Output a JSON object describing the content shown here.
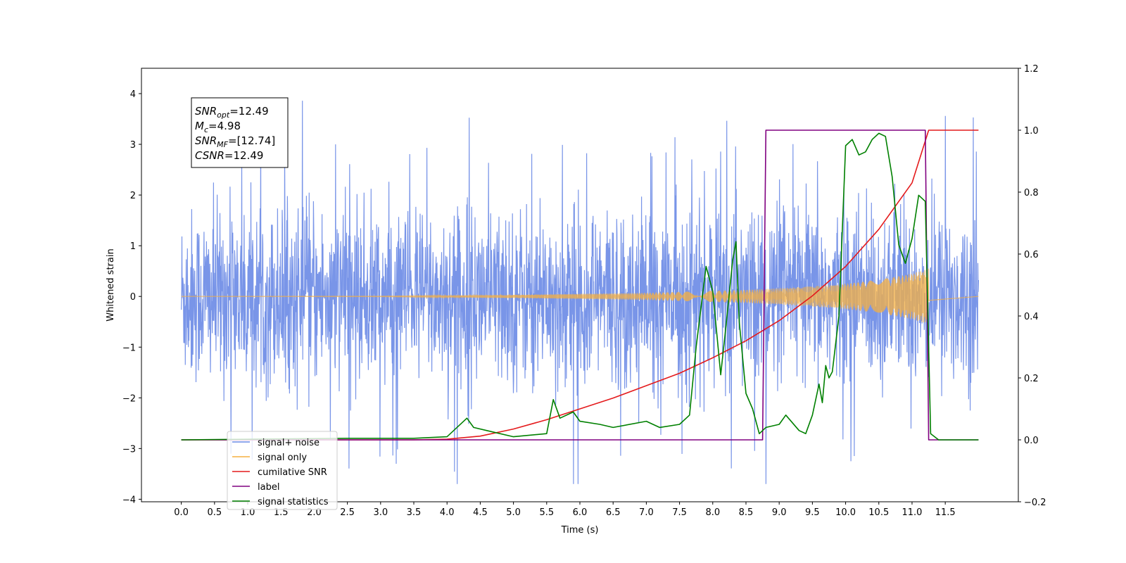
{
  "chart_data": {
    "type": "line",
    "title": "",
    "xlabel": "Time (s)",
    "ylabel": "Whitened strain",
    "xlim": [
      -0.6,
      12.6
    ],
    "ylim": [
      -4.05,
      4.5
    ],
    "y2lim": [
      -0.2,
      1.2
    ],
    "xticks": [
      "0.0",
      "0.5",
      "1.0",
      "1.5",
      "2.0",
      "2.5",
      "3.0",
      "3.5",
      "4.0",
      "4.5",
      "5.0",
      "5.5",
      "6.0",
      "6.5",
      "7.0",
      "7.5",
      "8.0",
      "8.5",
      "9.0",
      "9.5",
      "10.0",
      "10.5",
      "11.0",
      "11.5"
    ],
    "yticks": [
      "4",
      "3",
      "2",
      "1",
      "0",
      "−1",
      "−2",
      "−3",
      "−4"
    ],
    "y2ticks": [
      "1.2",
      "1.0",
      "0.8",
      "0.6",
      "0.4",
      "0.2",
      "0.0",
      "−0.2"
    ],
    "grid": false,
    "legend_position": "lower-left",
    "annotation": {
      "lines": [
        {
          "sym": "SNR",
          "sub": "opt",
          "rest": "=12.49"
        },
        {
          "sym": "M",
          "sub": "c",
          "rest": "=4.98"
        },
        {
          "sym": "SNR",
          "sub": "MF",
          "rest": "=[12.74]"
        },
        {
          "sym": "CSNR",
          "sub": "",
          "rest": "=12.49"
        }
      ]
    },
    "series": [
      {
        "name": "signal+ noise",
        "axis": "left",
        "color": "#6a8ae6",
        "noise_band": [
          -1.6,
          2.0
        ],
        "x_range": [
          0.0,
          12.0
        ]
      },
      {
        "name": "signal only",
        "axis": "left",
        "color": "#f5b041",
        "x": [
          0.0,
          3.0,
          5.0,
          6.0,
          7.0,
          7.5,
          8.0,
          8.5,
          9.0,
          9.5,
          10.0,
          10.5,
          11.0,
          11.25
        ],
        "amplitude": [
          0.0,
          0.005,
          0.03,
          0.05,
          0.07,
          0.09,
          0.11,
          0.13,
          0.16,
          0.2,
          0.25,
          0.33,
          0.45,
          0.55
        ]
      },
      {
        "name": "cumilative SNR",
        "axis": "right",
        "color": "#e41a1c",
        "x": [
          0.0,
          3.5,
          4.0,
          4.5,
          5.0,
          5.5,
          6.0,
          6.5,
          7.0,
          7.5,
          8.0,
          8.5,
          9.0,
          9.5,
          10.0,
          10.5,
          11.0,
          11.25,
          12.0
        ],
        "values": [
          0.0,
          0.0,
          0.002,
          0.012,
          0.035,
          0.065,
          0.1,
          0.135,
          0.175,
          0.215,
          0.265,
          0.32,
          0.385,
          0.465,
          0.56,
          0.68,
          0.83,
          1.0,
          1.0
        ]
      },
      {
        "name": "label",
        "axis": "right",
        "color": "#800080",
        "x": [
          0.0,
          8.75,
          8.8,
          11.2,
          11.25,
          12.0
        ],
        "values": [
          0.0,
          0.0,
          1.0,
          1.0,
          0.0,
          0.0
        ]
      },
      {
        "name": "signal statistics",
        "axis": "right",
        "color": "#008000",
        "x": [
          0.0,
          2.5,
          3.5,
          4.0,
          4.3,
          4.4,
          4.6,
          5.0,
          5.5,
          5.6,
          5.7,
          5.9,
          6.0,
          6.3,
          6.5,
          7.0,
          7.2,
          7.5,
          7.65,
          7.75,
          7.9,
          8.0,
          8.12,
          8.2,
          8.3,
          8.35,
          8.4,
          8.5,
          8.6,
          8.7,
          8.8,
          9.0,
          9.1,
          9.3,
          9.4,
          9.5,
          9.6,
          9.65,
          9.7,
          9.75,
          9.8,
          9.9,
          10.0,
          10.1,
          10.2,
          10.3,
          10.4,
          10.5,
          10.6,
          10.7,
          10.8,
          10.9,
          11.0,
          11.1,
          11.2,
          11.28,
          11.4,
          11.5,
          12.0
        ],
        "values": [
          0.0,
          0.005,
          0.005,
          0.01,
          0.07,
          0.04,
          0.03,
          0.01,
          0.02,
          0.13,
          0.07,
          0.09,
          0.06,
          0.05,
          0.04,
          0.06,
          0.04,
          0.05,
          0.08,
          0.3,
          0.56,
          0.48,
          0.21,
          0.37,
          0.58,
          0.64,
          0.38,
          0.15,
          0.1,
          0.02,
          0.04,
          0.05,
          0.08,
          0.03,
          0.02,
          0.08,
          0.18,
          0.12,
          0.24,
          0.2,
          0.22,
          0.4,
          0.95,
          0.97,
          0.92,
          0.93,
          0.97,
          0.99,
          0.98,
          0.85,
          0.63,
          0.57,
          0.65,
          0.79,
          0.77,
          0.02,
          0.0,
          0.0,
          0.0
        ]
      }
    ],
    "legend_entries": [
      "signal+ noise",
      "signal only",
      "cumilative SNR",
      "label",
      "signal statistics"
    ],
    "legend_colors": [
      "#6a8ae6",
      "#f5b041",
      "#e41a1c",
      "#800080",
      "#008000"
    ]
  }
}
